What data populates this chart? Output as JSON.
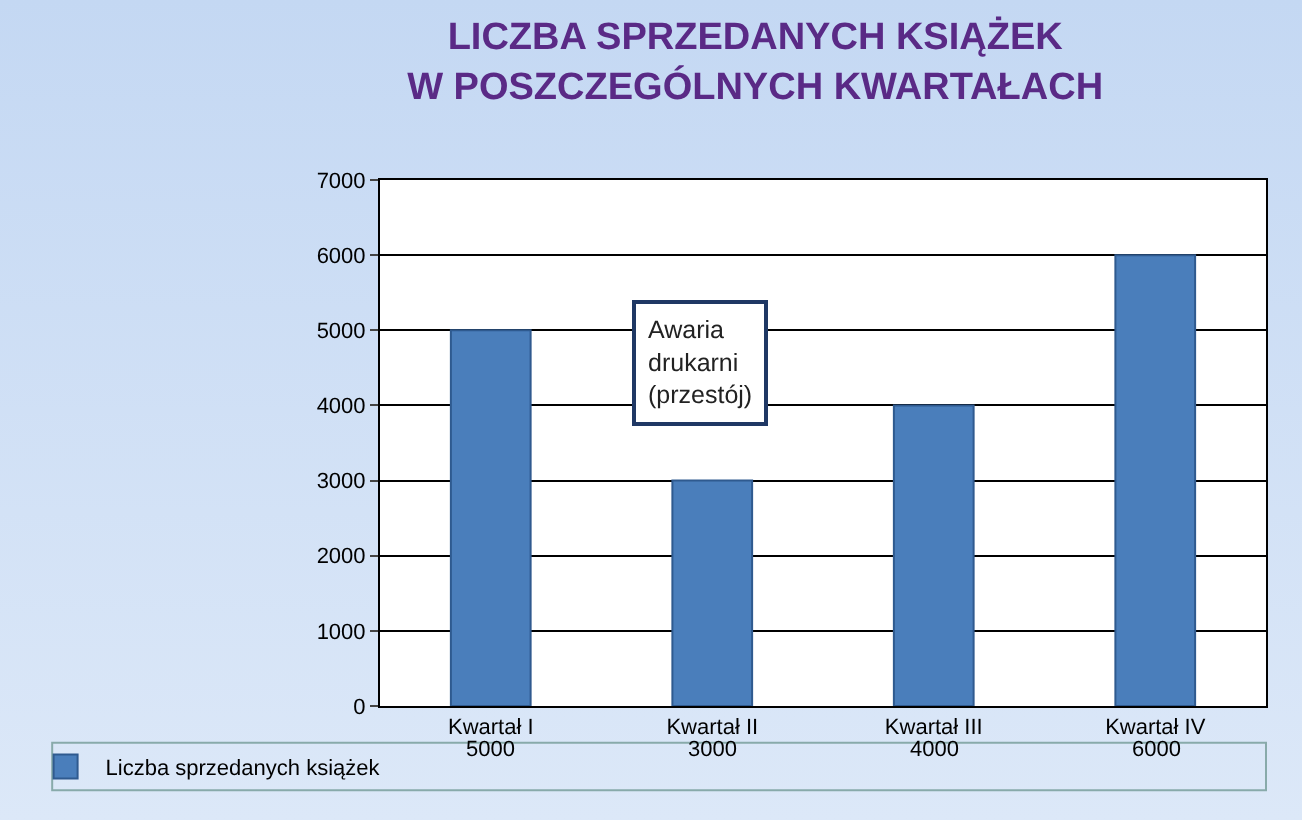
{
  "chart_data": {
    "type": "bar",
    "title": "LICZBA SPRZEDANYCH KSIĄŻEK\nW POSZCZEGÓLNYCH KWARTAŁACH",
    "categories": [
      "Kwartał I",
      "Kwartał II",
      "Kwartał III",
      "Kwartał IV"
    ],
    "series": [
      {
        "name": "Liczba sprzedanych książek",
        "color": "#4a7ebb",
        "values": [
          5000,
          3000,
          4000,
          6000
        ]
      }
    ],
    "ylim": [
      0,
      7000
    ],
    "yticks": [
      0,
      1000,
      2000,
      3000,
      4000,
      5000,
      6000,
      7000
    ],
    "grid": "y",
    "legend": "bottom left",
    "data_labels": true,
    "annotations": [
      "Awaria\ndrukarni\n(przestój)"
    ]
  }
}
